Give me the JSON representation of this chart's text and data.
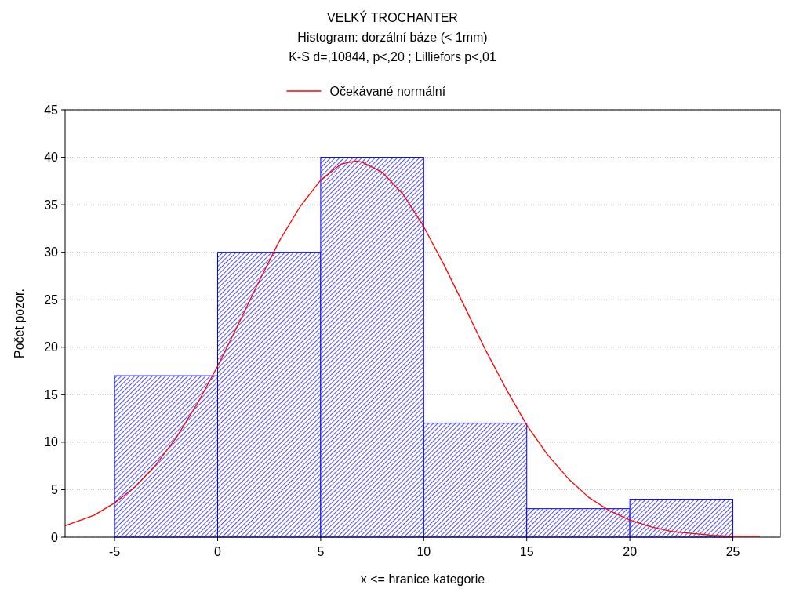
{
  "chart_data": {
    "type": "histogram",
    "title": "VELKÝ TROCHANTER",
    "subtitle": "Histogram: dorzální báze (< 1mm)",
    "annotations": [
      "K-S d=,10844, p<,20 ; Lilliefors p<,01"
    ],
    "xlabel": "x <= hranice kategorie",
    "ylabel": "Počet pozor.",
    "bins": [
      -5,
      0,
      5,
      10,
      15,
      20,
      25
    ],
    "values": [
      17,
      30,
      40,
      12,
      3,
      4
    ],
    "color": "#0000ff",
    "series": [
      {
        "type": "line",
        "name": "Očekávané normální",
        "color": "#ff0000",
        "x": [
          -7.4,
          -6,
          -5,
          -4,
          -3,
          -2,
          -1,
          0,
          1,
          2,
          3,
          4,
          5,
          6,
          6.7,
          7,
          8,
          9,
          10,
          11,
          12,
          13,
          14,
          15,
          16,
          17,
          18,
          19,
          20,
          21,
          22,
          23,
          24,
          25,
          26.3
        ],
        "values": [
          1.2,
          2.3,
          3.6,
          5.3,
          7.6,
          10.5,
          14.0,
          18.0,
          22.4,
          26.9,
          31.2,
          34.8,
          37.6,
          39.3,
          39.6,
          39.5,
          38.4,
          36.1,
          32.7,
          28.6,
          24.2,
          19.7,
          15.6,
          11.8,
          8.7,
          6.2,
          4.2,
          2.8,
          1.8,
          1.1,
          0.6,
          0.4,
          0.2,
          0.1,
          0.1
        ]
      }
    ],
    "xlim": [
      -7.4,
      27.3
    ],
    "ylim": [
      0,
      45
    ],
    "xticks": [
      -5,
      0,
      5,
      10,
      15,
      20,
      25
    ],
    "yticks": [
      0,
      5,
      10,
      15,
      20,
      25,
      30,
      35,
      40,
      45
    ],
    "grid": "y",
    "legend": "top",
    "marker": "none",
    "line_style": "solid"
  }
}
